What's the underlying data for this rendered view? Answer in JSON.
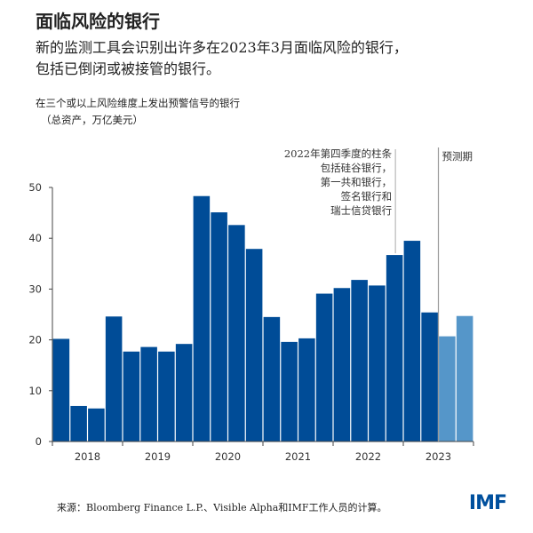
{
  "header": {
    "title": "面临风险的银行",
    "subtitle_line1": "新的监测工具会识别出许多在2023年3月面临风险的银行，",
    "subtitle_line2": "包括已倒闭或被接管的银行。"
  },
  "chart_data": {
    "type": "bar",
    "title": "在三个或以上风险维度上发出预警信号的银行",
    "subtitle": "（总资产，万亿美元）",
    "x_tick_labels": [
      "2018",
      "2019",
      "2020",
      "2021",
      "2022",
      "2023"
    ],
    "bars_per_year": 4,
    "values": [
      20.2,
      7.0,
      6.5,
      24.6,
      17.7,
      18.6,
      17.7,
      19.2,
      48.3,
      45.1,
      42.6,
      37.9,
      24.5,
      19.6,
      20.3,
      29.1,
      30.2,
      31.8,
      30.7,
      36.7,
      39.5,
      25.4,
      20.7,
      24.7
    ],
    "forecast": [
      false,
      false,
      false,
      false,
      false,
      false,
      false,
      false,
      false,
      false,
      false,
      false,
      false,
      false,
      false,
      false,
      false,
      false,
      false,
      false,
      false,
      false,
      true,
      true
    ],
    "ylim": [
      0,
      50
    ],
    "yticks": [
      0,
      10,
      20,
      30,
      40,
      50
    ],
    "grid": false,
    "colors": {
      "actual": "#004c97",
      "forecast": "#5596c9",
      "annotation_line": "#aaaaaa",
      "forecast_line": "#999999"
    },
    "annotation": [
      "2022年第四季度的柱条",
      "包括硅谷银行，",
      "第一共和银行，",
      "签名银行和",
      "瑞士信贷银行"
    ],
    "annotation_bar_index": 19,
    "forecast_label": "预测期"
  },
  "footer": {
    "source": "来源：Bloomberg Finance L.P.、Visible Alpha和IMF工作人员的计算。",
    "logo": "IMF"
  }
}
